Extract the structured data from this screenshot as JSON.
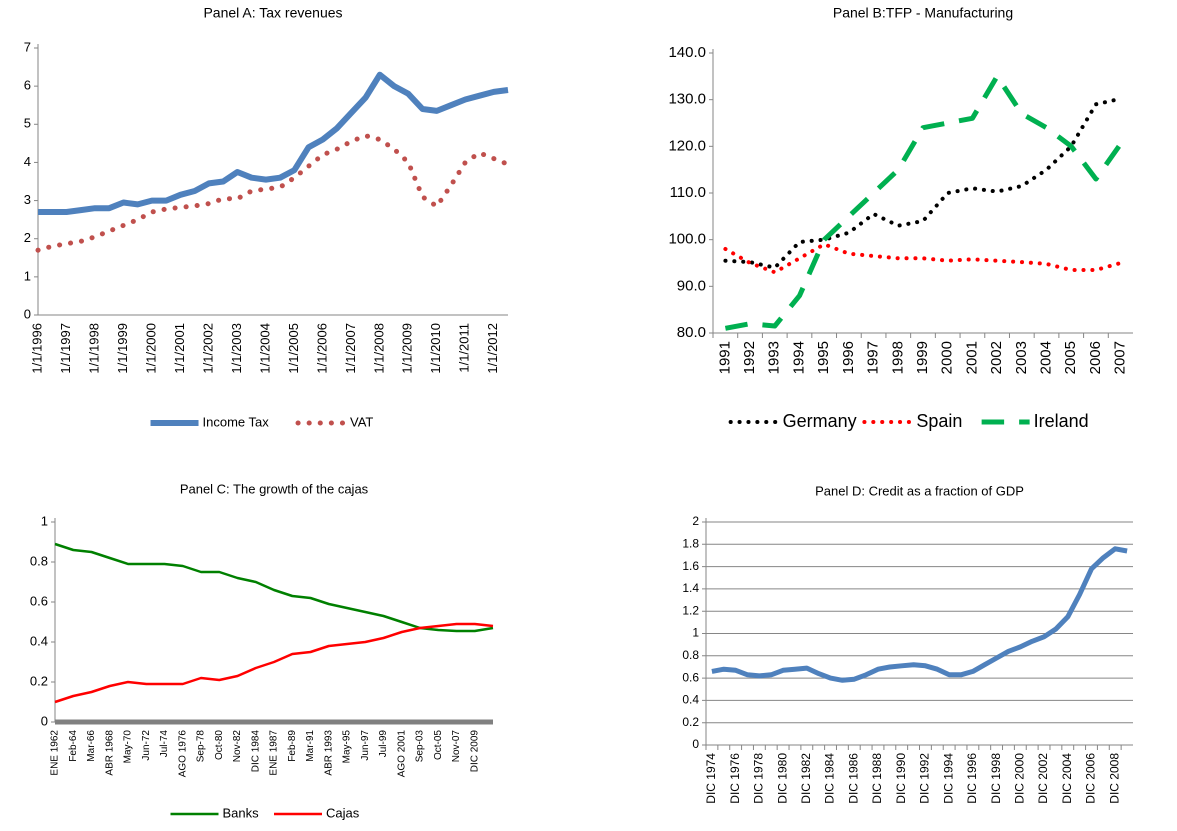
{
  "chart_data": [
    {
      "type": "line",
      "title": "Panel A: Tax revenues",
      "grid": false,
      "legend": "bottom",
      "categories": [
        "1/1/1996",
        null,
        "1/1/1997",
        null,
        "1/1/1998",
        null,
        "1/1/1999",
        null,
        "1/1/2000",
        null,
        "1/1/2001",
        null,
        "1/1/2002",
        null,
        "1/1/2003",
        null,
        "1/1/2004",
        null,
        "1/1/2005",
        null,
        "1/1/2006",
        null,
        "1/1/2007",
        null,
        "1/1/2008",
        null,
        "1/1/2009",
        null,
        "1/1/2010",
        null,
        "1/1/2011",
        null,
        "1/1/2012",
        null
      ],
      "series": [
        {
          "name": "Income Tax",
          "color": "#4f81bd",
          "line_style": "solid",
          "line_width": 6,
          "values": [
            2.7,
            2.7,
            2.7,
            2.75,
            2.8,
            2.8,
            2.95,
            2.9,
            3.0,
            3.0,
            3.15,
            3.25,
            3.45,
            3.5,
            3.75,
            3.6,
            3.55,
            3.6,
            3.8,
            4.4,
            4.6,
            4.9,
            5.3,
            5.7,
            6.3,
            6.0,
            5.8,
            5.4,
            5.35,
            5.5,
            5.65,
            5.75,
            5.85,
            5.9
          ]
        },
        {
          "name": "VAT",
          "color": "#c0504d",
          "line_style": "dotted",
          "line_width": 5,
          "values": [
            1.7,
            1.8,
            1.87,
            1.93,
            2.05,
            2.2,
            2.35,
            2.5,
            2.7,
            2.78,
            2.82,
            2.86,
            2.92,
            3.05,
            3.05,
            3.25,
            3.3,
            3.35,
            3.6,
            3.9,
            4.2,
            4.35,
            4.55,
            4.7,
            4.6,
            4.35,
            4.0,
            3.1,
            2.85,
            3.4,
            4.0,
            4.25,
            4.1,
            3.95
          ]
        }
      ],
      "ylim": [
        0,
        7
      ],
      "yticks": [
        0,
        1,
        2,
        3,
        4,
        5,
        6,
        7
      ]
    },
    {
      "type": "line",
      "title": "Panel B:TFP - Manufacturing",
      "grid": false,
      "legend": "bottom",
      "categories": [
        "1991",
        "1992",
        "1993",
        "1994",
        "1995",
        "1996",
        "1997",
        "1998",
        "1999",
        "2000",
        "2001",
        "2002",
        "2003",
        "2004",
        "2005",
        "2006",
        "2007"
      ],
      "series": [
        {
          "name": "Germany",
          "color": "#000000",
          "line_style": "dotted",
          "line_width": 4,
          "values": [
            95.5,
            95.2,
            94,
            99.5,
            100,
            101.5,
            105.5,
            103,
            104,
            110,
            111,
            110.3,
            111.5,
            115,
            120,
            129,
            130.2
          ]
        },
        {
          "name": "Spain",
          "color": "#ff0000",
          "line_style": "dotted",
          "line_width": 4,
          "values": [
            98,
            95,
            93,
            96,
            99,
            97,
            96.5,
            96,
            96,
            95.5,
            95.8,
            95.5,
            95.2,
            94.8,
            93.5,
            93.5,
            95
          ]
        },
        {
          "name": "Ireland",
          "color": "#00b050",
          "line_style": "dashed",
          "line_width": 5,
          "values": [
            81,
            82,
            81.5,
            88,
            100,
            105,
            110,
            115,
            124,
            125,
            126,
            135,
            127,
            124,
            120,
            113,
            120.5
          ]
        }
      ],
      "ylim": [
        80,
        140
      ],
      "yticks": [
        {
          "value": 80,
          "label": "80.0"
        },
        {
          "value": 90,
          "label": "90.0"
        },
        {
          "value": 100,
          "label": "100.0"
        },
        {
          "value": 110,
          "label": "110.0"
        },
        {
          "value": 120,
          "label": "120.0"
        },
        {
          "value": 130,
          "label": "130.0"
        },
        {
          "value": 140,
          "label": "140.0"
        }
      ]
    },
    {
      "type": "line",
      "title": "Panel C: The growth of the cajas",
      "grid": false,
      "legend": "bottom",
      "categories": [
        "ENE 1962",
        "Feb-64",
        "Mar-66",
        "ABR 1968",
        "May-70",
        "Jun-72",
        "Jul-74",
        "AGO 1976",
        "Sep-78",
        "Oct-80",
        "Nov-82",
        "DIC 1984",
        "ENE 1987",
        "Feb-89",
        "Mar-91",
        "ABR 1993",
        "May-95",
        "Jun-97",
        "Jul-99",
        "AGO 2001",
        "Sep-03",
        "Oct-05",
        "Nov-07",
        "DIC 2009",
        null
      ],
      "series": [
        {
          "name": "Banks",
          "color": "#008000",
          "line_style": "solid",
          "line_width": 2.5,
          "values": [
            0.89,
            0.86,
            0.85,
            0.82,
            0.79,
            0.79,
            0.79,
            0.78,
            0.75,
            0.75,
            0.72,
            0.7,
            0.66,
            0.63,
            0.62,
            0.59,
            0.57,
            0.55,
            0.53,
            0.5,
            0.47,
            0.46,
            0.455,
            0.455,
            0.47
          ]
        },
        {
          "name": "Cajas",
          "color": "#ff0000",
          "line_style": "solid",
          "line_width": 2.5,
          "values": [
            0.1,
            0.13,
            0.15,
            0.18,
            0.2,
            0.19,
            0.19,
            0.19,
            0.22,
            0.21,
            0.23,
            0.27,
            0.3,
            0.34,
            0.35,
            0.38,
            0.39,
            0.4,
            0.42,
            0.45,
            0.47,
            0.48,
            0.49,
            0.49,
            0.48
          ]
        }
      ],
      "ylim": [
        0,
        1
      ],
      "yticks": [
        0,
        0.2,
        0.4,
        0.6,
        0.8,
        1
      ]
    },
    {
      "type": "line",
      "title": "Panel D: Credit as a fraction of GDP",
      "grid": true,
      "categories": [
        "DIC 1974",
        null,
        "DIC 1976",
        null,
        "DIC 1978",
        null,
        "DIC 1980",
        null,
        "DIC 1982",
        null,
        "DIC 1984",
        null,
        "DIC 1986",
        null,
        "DIC 1988",
        null,
        "DIC 1990",
        null,
        "DIC 1992",
        null,
        "DIC 1994",
        null,
        "DIC 1996",
        null,
        "DIC 1998",
        null,
        "DIC 2000",
        null,
        "DIC 2002",
        null,
        "DIC 2004",
        null,
        "DIC 2006",
        null,
        "DIC 2008",
        null
      ],
      "series": [
        {
          "color": "#4f81bd",
          "line_style": "solid",
          "line_width": 5,
          "values": [
            0.66,
            0.68,
            0.67,
            0.63,
            0.62,
            0.63,
            0.67,
            0.68,
            0.69,
            0.64,
            0.6,
            0.58,
            0.59,
            0.63,
            0.68,
            0.7,
            0.71,
            0.72,
            0.71,
            0.68,
            0.63,
            0.63,
            0.66,
            0.72,
            0.78,
            0.84,
            0.88,
            0.93,
            0.97,
            1.04,
            1.15,
            1.35,
            1.58,
            1.68,
            1.76,
            1.74
          ]
        }
      ],
      "ylim": [
        0,
        2
      ],
      "yticks": [
        0,
        0.2,
        0.4,
        0.6,
        0.8,
        1,
        1.2,
        1.4,
        1.6,
        1.8,
        2
      ]
    }
  ]
}
